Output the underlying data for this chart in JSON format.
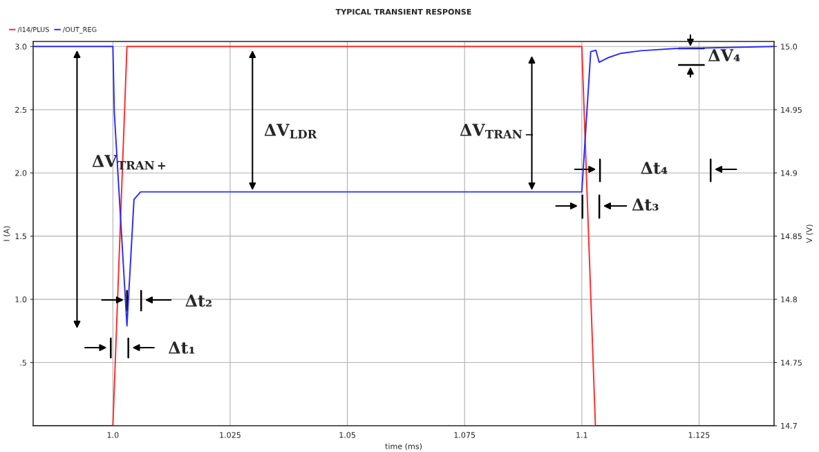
{
  "chart_data": {
    "type": "line",
    "title": "TYPICAL TRANSIENT RESPONSE",
    "xlabel": "time (ms)",
    "ylabel": "I (A)",
    "y2label": "V (V)",
    "series": [
      {
        "name": "/I14/PLUS",
        "color": "#ff2a2a",
        "x": [
          0.983,
          1.0,
          1.003,
          1.1,
          1.1029,
          1.141
        ],
        "values": [
          0,
          0,
          3.0,
          3.0,
          0,
          0
        ]
      },
      {
        "name": "/OUT_REG",
        "color": "#2a2aff",
        "axis": "y2",
        "x": [
          0.983,
          1.0,
          1.0003,
          1.003,
          1.0045,
          1.0059,
          1.1,
          1.1019,
          1.103,
          1.1037,
          1.1055,
          1.1083,
          1.1126,
          1.1198,
          1.141
        ],
        "values": [
          15.0,
          15.0,
          14.948,
          14.779,
          14.879,
          14.885,
          14.885,
          14.996,
          14.997,
          14.9875,
          14.991,
          14.9946,
          14.9967,
          14.9984,
          15.0
        ]
      }
    ],
    "xlim": [
      0.983,
      1.141
    ],
    "xticks": [
      {
        "value": 1.0,
        "label": "1.0"
      },
      1.025,
      1.05,
      1.075,
      {
        "value": 1.1,
        "label": "1.1"
      },
      1.125
    ],
    "ylim": [
      0,
      3.04
    ],
    "yticks": [
      {
        "value": 0.5,
        "label": ".5"
      },
      {
        "value": 1.0,
        "label": "1.0"
      },
      1.5,
      {
        "value": 2.0,
        "label": "2.0"
      },
      2.5,
      {
        "value": 3.0,
        "label": "3.0"
      }
    ],
    "y2lim": [
      14.7,
      15.004
    ],
    "y2ticks": [
      14.7,
      14.75,
      14.8,
      14.85,
      14.9,
      14.95,
      {
        "value": 15.0,
        "label": "15.0"
      }
    ],
    "grid": true,
    "legend": "top left",
    "marker": "none",
    "line_style": "solid",
    "annotations": [
      "ΔV$_{TRAN+}$",
      "ΔV$_{LDR}$",
      "ΔV$_{TRAN−}$",
      "Δt₁",
      "Δt₂",
      "Δt₃",
      "Δt₄",
      "ΔV₄"
    ]
  }
}
